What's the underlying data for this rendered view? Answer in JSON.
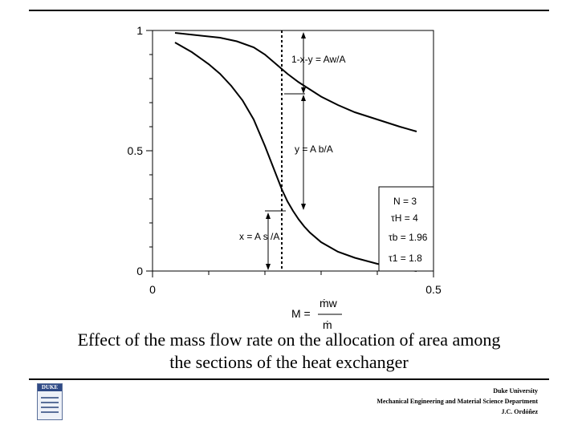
{
  "chart_data": {
    "type": "line",
    "xlabel": "M =",
    "xlabel_frac": {
      "numerator": "ṁw",
      "denominator": "ṁ"
    },
    "xlim": [
      0,
      0.5
    ],
    "ylim": [
      0,
      1
    ],
    "x_ticks": [
      "0",
      "0.5"
    ],
    "y_ticks": [
      "0",
      "0.5",
      "1"
    ],
    "series": [
      {
        "x": [
          0.04,
          0.08,
          0.12,
          0.15,
          0.18,
          0.2,
          0.22,
          0.24,
          0.26,
          0.28,
          0.3,
          0.33,
          0.36,
          0.4,
          0.44,
          0.47
        ],
        "y": [
          0.99,
          0.98,
          0.97,
          0.955,
          0.93,
          0.9,
          0.86,
          0.82,
          0.785,
          0.755,
          0.725,
          0.69,
          0.66,
          0.63,
          0.6,
          0.58
        ]
      },
      {
        "x": [
          0.04,
          0.07,
          0.1,
          0.12,
          0.14,
          0.16,
          0.18,
          0.2,
          0.22,
          0.23,
          0.24,
          0.25,
          0.26,
          0.27,
          0.28,
          0.3,
          0.33,
          0.36,
          0.4,
          0.44,
          0.47
        ],
        "y": [
          0.95,
          0.91,
          0.86,
          0.82,
          0.77,
          0.71,
          0.63,
          0.52,
          0.4,
          0.34,
          0.29,
          0.25,
          0.215,
          0.185,
          0.16,
          0.12,
          0.08,
          0.055,
          0.03,
          0.01,
          0.0
        ]
      }
    ],
    "vertical_reference_x": 0.23,
    "annotations": {
      "top": "1-x-y = Aw/A",
      "middle": "y = A b/A",
      "bottom": "x = A s /A"
    },
    "legend": {
      "position": "bottom-right",
      "N": "N = 3",
      "tauH": "τH = 4",
      "taub": "τb = 1.96",
      "tau1": "τ1 = 1.8"
    }
  },
  "caption_line1": "Effect of the mass flow rate on the allocation of area among",
  "caption_line2": "the sections of the heat exchanger",
  "footer": {
    "line1": "Duke University",
    "line2": "Mechanical Engineering and Material Science Department",
    "line3": "J.C. Ordóñez"
  },
  "logo_text": "DUKE"
}
